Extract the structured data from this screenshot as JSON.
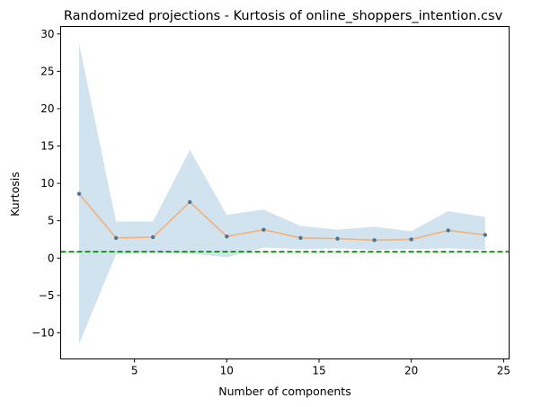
{
  "chart_data": {
    "type": "line",
    "title": "Randomized projections - Kurtosis of online_shoppers_intention.csv",
    "xlabel": "Number of components",
    "ylabel": "Kurtosis",
    "xlim": [
      1,
      25.3
    ],
    "ylim": [
      -13.5,
      31
    ],
    "xticks": [
      5,
      10,
      15,
      20,
      25
    ],
    "yticks": [
      -10,
      -5,
      0,
      5,
      10,
      15,
      20,
      25,
      30
    ],
    "grid": false,
    "series": [
      {
        "x": [
          2,
          4,
          6,
          8,
          10,
          12,
          14,
          16,
          18,
          20,
          22,
          24
        ],
        "values": [
          8.6,
          2.7,
          2.8,
          7.5,
          2.9,
          3.8,
          2.7,
          2.6,
          2.4,
          2.5,
          3.7,
          3.1
        ],
        "upper": [
          28.7,
          4.9,
          4.9,
          14.5,
          5.8,
          6.5,
          4.3,
          3.8,
          4.2,
          3.6,
          6.3,
          5.5
        ],
        "lower": [
          -11.5,
          0.5,
          0.8,
          0.6,
          0.1,
          1.4,
          1.2,
          1.3,
          1.1,
          1.2,
          1.3,
          1.1
        ]
      }
    ],
    "reference_line": {
      "y": 0.85,
      "style": "dashed"
    },
    "colors": {
      "band": "#d2e3f0",
      "line": "#f2b17c",
      "marker": "#4e7496",
      "reference": "#008000"
    }
  }
}
